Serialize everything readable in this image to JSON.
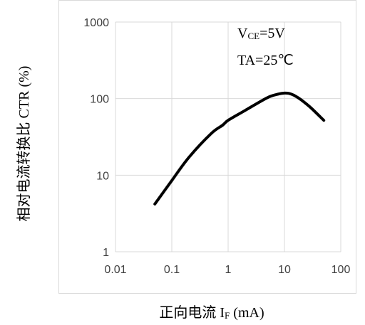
{
  "chart_data": {
    "type": "line",
    "xscale": "log",
    "yscale": "log",
    "xlim": [
      0.01,
      100
    ],
    "ylim": [
      1,
      1000
    ],
    "grid": true,
    "x_ticks": [
      "0.01",
      "0.1",
      "1",
      "10",
      "100"
    ],
    "y_ticks": [
      "1",
      "10",
      "100",
      "1000"
    ],
    "xlabel": {
      "main": "正向电流 I",
      "sub": "F",
      "unit": " (mA)"
    },
    "ylabel": "相对电流转换比 CTR (%)",
    "annotations": [
      {
        "main": "V",
        "sub": "CE",
        "rest": "=5V"
      },
      {
        "text": "TA=25℃"
      }
    ],
    "series": [
      {
        "color": "#000000",
        "x": [
          0.05,
          0.1,
          0.2,
          0.5,
          0.8,
          1,
          2,
          5,
          8,
          10,
          12,
          15,
          20,
          30,
          50
        ],
        "y": [
          4.2,
          8.5,
          17,
          35,
          45,
          52,
          70,
          103,
          115,
          118,
          117,
          110,
          96,
          75,
          52
        ]
      }
    ]
  }
}
